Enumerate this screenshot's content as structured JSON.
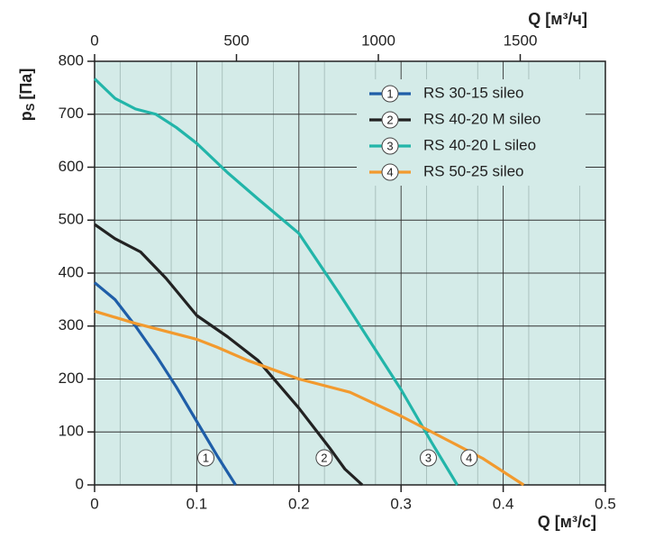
{
  "chart_data": {
    "type": "line",
    "x_label": "Q [м³/с]",
    "x2_label": "Q [м³/ч]",
    "y_label_symbol": "p",
    "y_label_subscript": "S",
    "y_label_unit": "[Па]",
    "xlim": [
      0,
      0.5
    ],
    "xticks": [
      0,
      0.1,
      0.2,
      0.3,
      0.4,
      0.5
    ],
    "x2lim": [
      0,
      1800
    ],
    "x2ticks": [
      0,
      500,
      1000,
      1500
    ],
    "ylim": [
      0,
      800
    ],
    "yticks": [
      0,
      100,
      200,
      300,
      400,
      500,
      600,
      700,
      800
    ],
    "grid": true,
    "legend": "upper right",
    "background": "#d4ebe8",
    "series": [
      {
        "name": "RS 30-15 sileo",
        "tag": "1",
        "color": "#1f5ea8",
        "x": [
          0,
          0.02,
          0.04,
          0.06,
          0.08,
          0.1,
          0.12,
          0.138
        ],
        "values": [
          382,
          350,
          300,
          245,
          185,
          120,
          55,
          0
        ]
      },
      {
        "name": "RS 40-20 M sileo",
        "tag": "2",
        "color": "#222222",
        "x": [
          0,
          0.02,
          0.045,
          0.07,
          0.1,
          0.13,
          0.16,
          0.2,
          0.23,
          0.245,
          0.262
        ],
        "values": [
          492,
          465,
          440,
          390,
          320,
          280,
          235,
          145,
          70,
          30,
          0
        ]
      },
      {
        "name": "RS 40-20 L sileo",
        "tag": "3",
        "color": "#22b5a9",
        "x": [
          0,
          0.02,
          0.04,
          0.06,
          0.08,
          0.1,
          0.13,
          0.16,
          0.2,
          0.24,
          0.27,
          0.3,
          0.33,
          0.355
        ],
        "values": [
          767,
          730,
          710,
          700,
          675,
          645,
          590,
          540,
          475,
          360,
          270,
          180,
          80,
          0
        ]
      },
      {
        "name": "RS 50-25 sileo",
        "tag": "4",
        "color": "#f29a2e",
        "x": [
          0,
          0.04,
          0.08,
          0.1,
          0.12,
          0.15,
          0.2,
          0.25,
          0.3,
          0.35,
          0.38,
          0.42
        ],
        "values": [
          328,
          305,
          285,
          275,
          260,
          235,
          200,
          175,
          130,
          80,
          50,
          0
        ]
      }
    ]
  }
}
